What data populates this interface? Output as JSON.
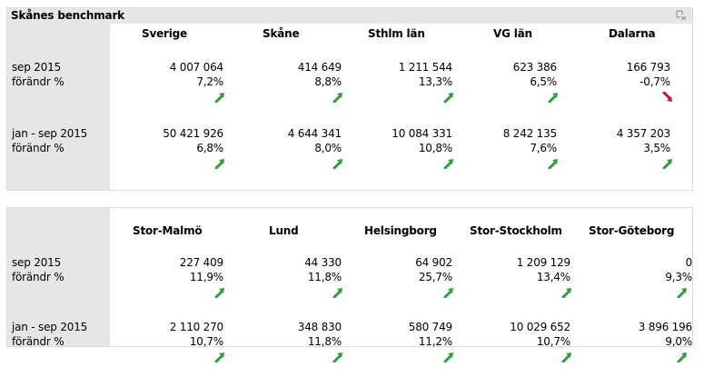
{
  "panel1": {
    "title": "Skånes benchmark",
    "columns": [
      "Sverige",
      "Skåne",
      "Sthlm län",
      "VG län",
      "Dalarna"
    ],
    "groups": [
      {
        "period": "sep 2015",
        "change_label": "förändr %",
        "values": [
          "4 007 064",
          "414 649",
          "1 211 544",
          "623 386",
          "166 793"
        ],
        "changes": [
          "7,2%",
          "8,8%",
          "13,3%",
          "6,5%",
          "-0,7%"
        ],
        "trends": [
          "up",
          "up",
          "up",
          "up",
          "down"
        ]
      },
      {
        "period": "jan - sep 2015",
        "change_label": "förändr %",
        "values": [
          "50 421 926",
          "4 644 341",
          "10 084 331",
          "8 242 135",
          "4 357 203"
        ],
        "changes": [
          "6,8%",
          "8,0%",
          "10,8%",
          "7,6%",
          "3,5%"
        ],
        "trends": [
          "up",
          "up",
          "up",
          "up",
          "up"
        ]
      }
    ]
  },
  "panel2": {
    "columns": [
      "Stor-Malmö",
      "Lund",
      "Helsingborg",
      "Stor-Stockholm",
      "Stor-Göteborg"
    ],
    "groups": [
      {
        "period": "sep 2015",
        "change_label": "förändr %",
        "values": [
          "227 409",
          "44 330",
          "64 902",
          "1 209 129",
          "0"
        ],
        "changes": [
          "11,9%",
          "11,8%",
          "25,7%",
          "13,4%",
          "9,3%"
        ],
        "trends": [
          "up",
          "up",
          "up",
          "up",
          "up"
        ]
      },
      {
        "period": "jan - sep 2015",
        "change_label": "förändr %",
        "values": [
          "2 110 270",
          "348 830",
          "580 749",
          "10 029 652",
          "3 896 196"
        ],
        "changes": [
          "10,7%",
          "11,8%",
          "11,2%",
          "10,7%",
          "9,0%"
        ],
        "trends": [
          "up",
          "up",
          "up",
          "up",
          "up"
        ]
      }
    ]
  },
  "colors": {
    "up_arrow": "#2e9e3a",
    "down_arrow": "#c0162b",
    "panel_gray": "#e6e6e6"
  }
}
